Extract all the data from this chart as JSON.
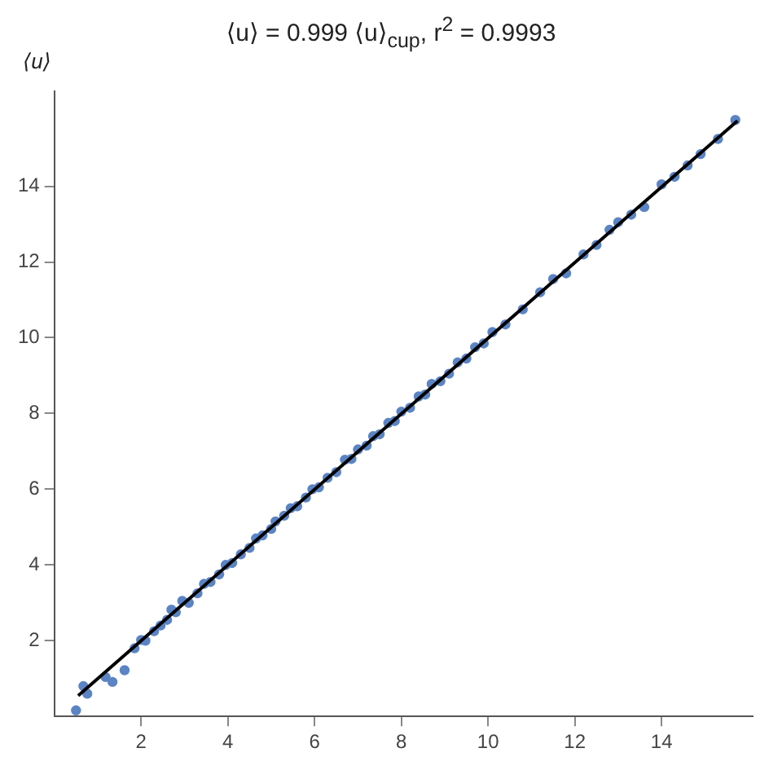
{
  "chart_data": {
    "type": "scatter",
    "title": "⟨u⟩ = 0.999 ⟨u⟩$_{cup}$, r$^{2}$ = 0.9993",
    "ylabel": "⟨u⟩",
    "xlim": [
      0,
      16.1
    ],
    "ylim": [
      0,
      16.5
    ],
    "xticks": [
      2,
      4,
      6,
      8,
      10,
      12,
      14
    ],
    "yticks": [
      2,
      4,
      6,
      8,
      10,
      12,
      14
    ],
    "grid": false,
    "legend": false,
    "series": [
      {
        "marker": "circle",
        "color": "#5b84c4",
        "x": [
          0.5,
          0.67,
          0.76,
          1.18,
          1.34,
          1.62,
          1.85,
          2.0,
          2.1,
          2.3,
          2.45,
          2.6,
          2.7,
          2.8,
          2.95,
          3.1,
          3.3,
          3.45,
          3.6,
          3.8,
          3.95,
          4.1,
          4.3,
          4.5,
          4.65,
          4.8,
          5.0,
          5.1,
          5.3,
          5.45,
          5.6,
          5.8,
          5.95,
          6.1,
          6.3,
          6.5,
          6.7,
          6.85,
          7.0,
          7.2,
          7.35,
          7.5,
          7.7,
          7.85,
          8.0,
          8.2,
          8.4,
          8.55,
          8.7,
          8.9,
          9.1,
          9.3,
          9.5,
          9.7,
          9.9,
          10.1,
          10.4,
          10.8,
          11.2,
          11.5,
          11.8,
          12.2,
          12.5,
          12.8,
          13.0,
          13.3,
          13.6,
          14.0,
          14.3,
          14.6,
          14.9,
          15.3,
          15.7
        ],
        "values": [
          0.16,
          0.8,
          0.6,
          1.04,
          0.91,
          1.22,
          1.8,
          2.02,
          2.0,
          2.25,
          2.4,
          2.55,
          2.82,
          2.75,
          3.05,
          3.0,
          3.25,
          3.5,
          3.55,
          3.75,
          4.0,
          4.05,
          4.28,
          4.45,
          4.7,
          4.78,
          4.95,
          5.15,
          5.3,
          5.5,
          5.55,
          5.78,
          6.0,
          6.05,
          6.3,
          6.45,
          6.78,
          6.8,
          7.05,
          7.15,
          7.4,
          7.45,
          7.75,
          7.8,
          8.05,
          8.15,
          8.45,
          8.5,
          8.78,
          8.85,
          9.05,
          9.35,
          9.45,
          9.75,
          9.85,
          10.15,
          10.35,
          10.75,
          11.2,
          11.55,
          11.7,
          12.2,
          12.45,
          12.85,
          13.05,
          13.25,
          13.45,
          14.05,
          14.25,
          14.55,
          14.85,
          15.25,
          15.75
        ]
      },
      {
        "type": "line",
        "color": "#000000",
        "x": [
          0.55,
          15.75
        ],
        "values": [
          0.55,
          15.73
        ]
      }
    ]
  }
}
